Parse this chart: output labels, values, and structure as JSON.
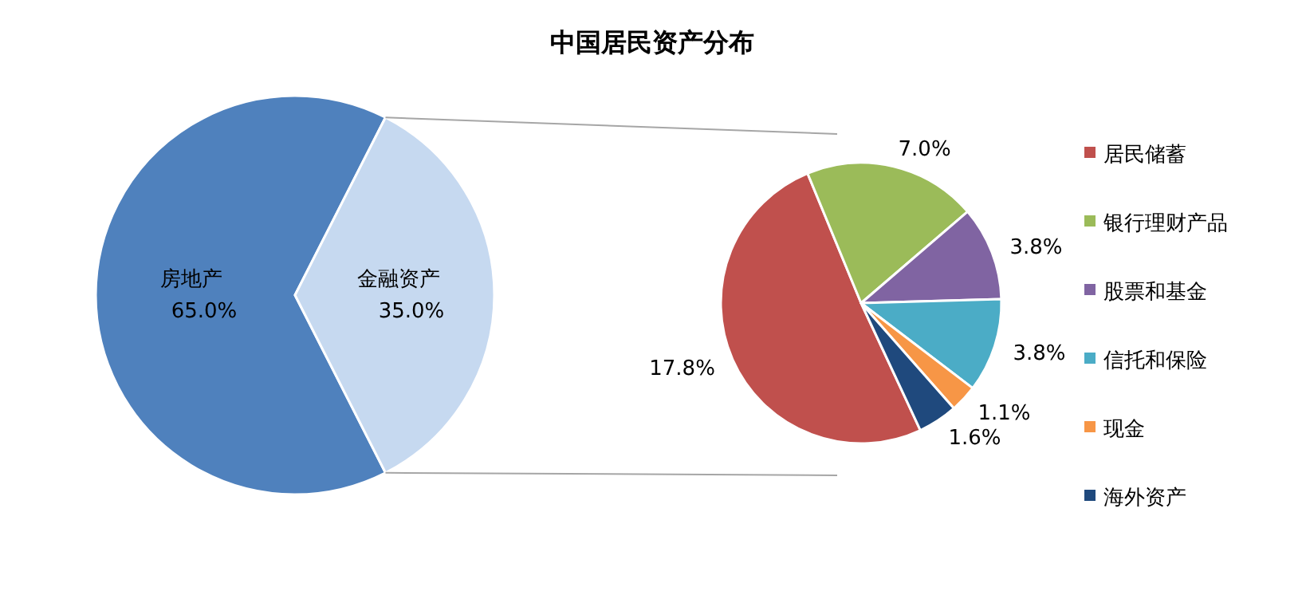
{
  "chart_data": [
    {
      "type": "pie",
      "title": "中国居民资产分布",
      "categories": [
        "房地产",
        "金融资产"
      ],
      "values": [
        65.0,
        35.0
      ],
      "colors": [
        "#4f81bd",
        "#c6d9f0"
      ],
      "value_labels": [
        "65.0%",
        "35.0%"
      ],
      "legend": false
    },
    {
      "type": "pie",
      "categories": [
        "居民储蓄",
        "银行理财产品",
        "股票和基金",
        "信托和保险",
        "现金",
        "海外资产"
      ],
      "values": [
        17.8,
        7.0,
        3.8,
        3.8,
        1.1,
        1.6
      ],
      "colors": [
        "#c0504d",
        "#9bbb59",
        "#8064a2",
        "#4bacc6",
        "#f79646",
        "#1f497d"
      ],
      "value_labels": [
        "17.8%",
        "7.0%",
        "3.8%",
        "3.8%",
        "1.1%",
        "1.6%"
      ],
      "legend": "right"
    }
  ]
}
